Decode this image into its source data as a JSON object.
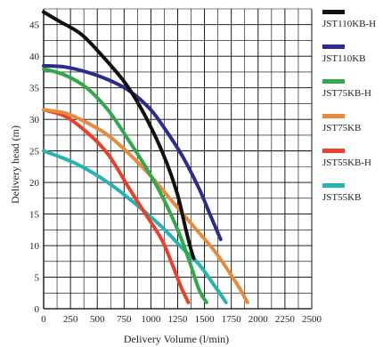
{
  "chart_data": {
    "type": "line",
    "title": "",
    "xlabel": "Delivery Volume (l/min)",
    "ylabel": "Delivery head (m)",
    "xlim": [
      0,
      2500
    ],
    "ylim": [
      0,
      47.5
    ],
    "x_ticks": [
      "0",
      "250",
      "500",
      "750",
      "1000",
      "1250",
      "1500",
      "1750",
      "2000",
      "2250",
      "2500"
    ],
    "y_ticks": [
      "0",
      "5",
      "10",
      "15",
      "20",
      "25",
      "30",
      "35",
      "40",
      "45"
    ],
    "grid": true,
    "legend_position": "right",
    "series": [
      {
        "name": "JST110KB-H",
        "color": "#111111",
        "x": [
          0,
          150,
          350,
          550,
          750,
          900,
          1050,
          1150,
          1250,
          1320,
          1380,
          1400
        ],
        "y": [
          47,
          45.5,
          43.5,
          40,
          36,
          32,
          27,
          23,
          18,
          13,
          9,
          8
        ]
      },
      {
        "name": "JST110KB",
        "color": "#2c2c8c",
        "x": [
          0,
          200,
          400,
          600,
          800,
          1000,
          1150,
          1300,
          1450,
          1550,
          1650
        ],
        "y": [
          38.5,
          38.3,
          37.5,
          36.3,
          34.5,
          31.5,
          28,
          24,
          19,
          15,
          11
        ]
      },
      {
        "name": "JST75KB-H",
        "color": "#33a84a",
        "x": [
          0,
          200,
          400,
          600,
          800,
          950,
          1100,
          1250,
          1350,
          1450,
          1520
        ],
        "y": [
          38,
          37,
          35,
          31.5,
          26.5,
          22.5,
          18,
          12.5,
          8,
          3,
          1
        ]
      },
      {
        "name": "JST75KB",
        "color": "#e98a3b",
        "x": [
          0,
          200,
          400,
          600,
          800,
          1000,
          1200,
          1400,
          1600,
          1800,
          1900
        ],
        "y": [
          31.5,
          31,
          29.5,
          27.5,
          24.5,
          21,
          17,
          13,
          9,
          4,
          1
        ]
      },
      {
        "name": "JST55KB-H",
        "color": "#e8402a",
        "x": [
          0,
          200,
          400,
          600,
          800,
          950,
          1100,
          1200,
          1280,
          1350
        ],
        "y": [
          31.5,
          30.5,
          28,
          24.5,
          19,
          15,
          11,
          7,
          3.5,
          1
        ]
      },
      {
        "name": "JST55KB",
        "color": "#26b3b3",
        "x": [
          0,
          300,
          600,
          900,
          1100,
          1300,
          1450,
          1600,
          1700
        ],
        "y": [
          25,
          23,
          20,
          16,
          13,
          9.5,
          7,
          3.5,
          1
        ]
      }
    ]
  }
}
